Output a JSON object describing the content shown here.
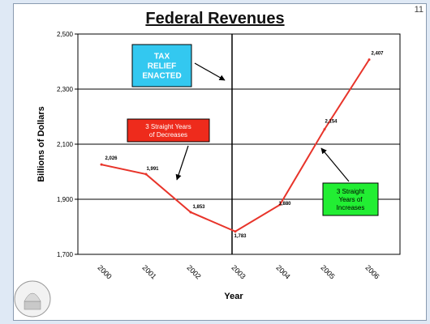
{
  "page_number": "11",
  "chart_data": {
    "type": "line",
    "title": "Federal Revenues",
    "xlabel": "Year",
    "ylabel": "Billions of Dollars",
    "categories": [
      "2000",
      "2001",
      "2002",
      "2003",
      "2004",
      "2005",
      "2006"
    ],
    "series": [
      {
        "values": [
          2026,
          1991,
          1853,
          1783,
          1880,
          2154,
          2407
        ]
      }
    ],
    "data_labels": [
      "2,026",
      "1,991",
      "1,853",
      "1,783",
      "1,880",
      "2,154",
      "2,407"
    ],
    "ylim": [
      1700,
      2500
    ],
    "yticks": [
      1700,
      1900,
      2100,
      2300,
      2500
    ],
    "ytick_labels": [
      "1,700",
      "1,900",
      "2,100",
      "2,300",
      "2,500"
    ],
    "grid": true,
    "line_color": "#e8342a",
    "annotations": [
      {
        "lines": [
          "TAX",
          "RELIEF",
          "ENACTED"
        ],
        "color": "#33c8f0"
      },
      {
        "lines": [
          "3 Straight Years",
          "of Decreases"
        ],
        "color": "#ee2b1c"
      },
      {
        "lines": [
          "3 Straight",
          "Years of",
          "Increases"
        ],
        "color": "#22ee33"
      }
    ],
    "vertical_marker_year": "2003"
  }
}
